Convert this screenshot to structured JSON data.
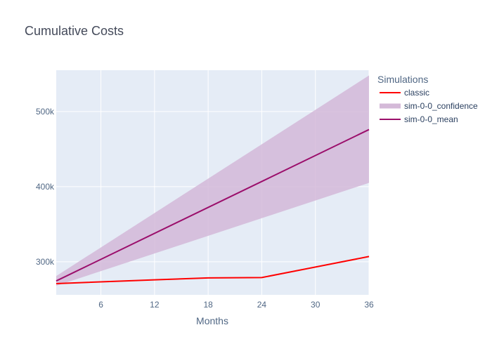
{
  "chart_data": {
    "type": "line",
    "title": "Cumulative Costs",
    "xlabel": "Months",
    "ylabel": "",
    "xlim": [
      1,
      36
    ],
    "ylim": [
      256000,
      555000
    ],
    "x_ticks": [
      6,
      12,
      18,
      24,
      30,
      36
    ],
    "x_tick_labels": [
      "6",
      "12",
      "18",
      "24",
      "30",
      "36"
    ],
    "y_ticks": [
      300000,
      400000,
      500000
    ],
    "y_tick_labels": [
      "300k",
      "400k",
      "500k"
    ],
    "grid": true,
    "legend": {
      "title": "Simulations",
      "placement": "right"
    },
    "colors": {
      "plot_bg": "#e5ecf6",
      "grid": "#ffffff",
      "classic": "#ff0000",
      "confidence": "#d4b9d8",
      "mean": "#9b0e6b"
    },
    "series": [
      {
        "name": "classic",
        "type": "line",
        "x": [
          1,
          12,
          18,
          24,
          36
        ],
        "y": [
          271000,
          276000,
          278500,
          279000,
          307000
        ]
      },
      {
        "name": "sim-0-0_confidence",
        "type": "band",
        "x": [
          1,
          36
        ],
        "upper": [
          281000,
          548000
        ],
        "lower": [
          268000,
          405000
        ]
      },
      {
        "name": "sim-0-0_mean",
        "type": "line",
        "x": [
          1,
          36
        ],
        "y": [
          274500,
          476000
        ]
      }
    ]
  }
}
